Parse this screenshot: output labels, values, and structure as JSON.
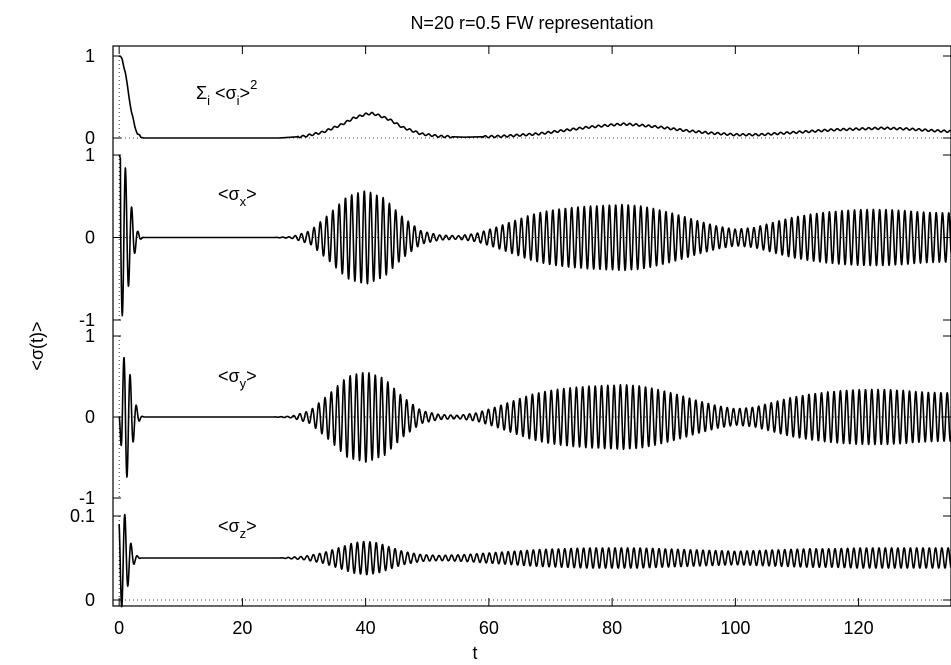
{
  "chart_data": {
    "type": "line",
    "title": "N=20  r=0.5   FW representation",
    "xlabel": "t",
    "ylabel": "<σ(t)>",
    "xlim": [
      -1,
      135
    ],
    "x_ticks": [
      0,
      20,
      40,
      60,
      80,
      100,
      120
    ],
    "x_tick_labels": [
      "0",
      "20",
      "40",
      "60",
      "80",
      "100",
      "120"
    ],
    "grid": false,
    "reference_lines": "dotted horizontal baseline in each panel, dotted vertical line at t=0",
    "panels": [
      {
        "annotation": "Σ_i <σ_i>^2",
        "annotation_parts": {
          "sym": "Σ",
          "sub1": "i",
          "mid": " <σ",
          "sub2": "i",
          ">": ">",
          "sup": "2"
        },
        "ylim": [
          0,
          1
        ],
        "y_ticks": [
          0,
          1
        ],
        "y_tick_labels": [
          "0",
          "1"
        ],
        "series": [
          {
            "x": [
              0,
              0.5,
              1.0,
              1.5,
              2.0,
              2.5,
              3.0,
              3.5,
              4,
              10,
              20,
              26,
              30,
              33,
              36,
              38,
              40,
              41,
              42,
              44,
              46,
              49,
              52,
              56,
              62,
              68,
              72,
              76,
              80,
              82,
              84,
              88,
              92,
              96,
              100,
              104,
              108,
              112,
              116,
              120,
              124,
              128,
              132,
              135
            ],
            "values": [
              1.0,
              0.96,
              0.8,
              0.55,
              0.32,
              0.15,
              0.05,
              0.01,
              0.0,
              0.0,
              0.0,
              0.0,
              0.02,
              0.07,
              0.16,
              0.24,
              0.29,
              0.3,
              0.28,
              0.22,
              0.13,
              0.05,
              0.02,
              0.01,
              0.02,
              0.05,
              0.09,
              0.13,
              0.16,
              0.17,
              0.16,
              0.13,
              0.09,
              0.06,
              0.04,
              0.04,
              0.06,
              0.08,
              0.1,
              0.11,
              0.12,
              0.11,
              0.09,
              0.08
            ],
            "ripple": 0.012
          }
        ]
      },
      {
        "annotation": "<σ_x>",
        "annotation_parts": {
          "open": "<σ",
          "sub": "x",
          "close": ">"
        },
        "ylim": [
          -1,
          1
        ],
        "y_ticks": [
          -1,
          0,
          1
        ],
        "y_tick_labels": [
          "-1",
          "0",
          "1"
        ],
        "series": [
          {
            "x": [
              0,
              0.5,
              1.0,
              1.5,
              2.0,
              2.5,
              3.0,
              3.5,
              4,
              10,
              20,
              25,
              28,
              31,
              34,
              37,
              40,
              43,
              46,
              49,
              52,
              55,
              58,
              61,
              64,
              67,
              70,
              73,
              76,
              79,
              82,
              85,
              88,
              91,
              94,
              97,
              100,
              103,
              106,
              109,
              112,
              115,
              118,
              121,
              124,
              127,
              130,
              133,
              135
            ],
            "amplitude": [
              1.0,
              0.95,
              0.85,
              0.6,
              0.38,
              0.2,
              0.08,
              0.02,
              0.0,
              0.0,
              0.0,
              0.0,
              0.01,
              0.08,
              0.28,
              0.5,
              0.57,
              0.48,
              0.25,
              0.08,
              0.03,
              0.02,
              0.05,
              0.12,
              0.2,
              0.28,
              0.33,
              0.36,
              0.38,
              0.39,
              0.4,
              0.38,
              0.33,
              0.27,
              0.2,
              0.14,
              0.1,
              0.12,
              0.18,
              0.24,
              0.28,
              0.31,
              0.33,
              0.34,
              0.34,
              0.33,
              0.31,
              0.3,
              0.3
            ],
            "period": 1.02,
            "phase": 0.0
          }
        ]
      },
      {
        "annotation": "<σ_y>",
        "annotation_parts": {
          "open": "<σ",
          "sub": "y",
          "close": ">"
        },
        "ylim": [
          -1,
          1
        ],
        "y_ticks": [
          -1,
          0,
          1
        ],
        "y_tick_labels": [
          "-1",
          "0",
          "1"
        ],
        "series": [
          {
            "x": [
              0,
              0.5,
              1.0,
              1.5,
              2.0,
              2.5,
              3.0,
              3.5,
              4,
              10,
              20,
              25,
              28,
              31,
              34,
              37,
              40,
              43,
              46,
              49,
              52,
              55,
              58,
              61,
              64,
              67,
              70,
              73,
              76,
              79,
              82,
              85,
              88,
              91,
              94,
              97,
              100,
              103,
              106,
              109,
              112,
              115,
              118,
              121,
              124,
              127,
              130,
              133,
              135
            ],
            "amplitude": [
              0.0,
              0.6,
              0.85,
              0.65,
              0.42,
              0.22,
              0.09,
              0.02,
              0.0,
              0.0,
              0.0,
              0.0,
              0.01,
              0.08,
              0.28,
              0.5,
              0.56,
              0.48,
              0.25,
              0.08,
              0.03,
              0.02,
              0.05,
              0.12,
              0.2,
              0.28,
              0.33,
              0.36,
              0.38,
              0.39,
              0.4,
              0.38,
              0.33,
              0.27,
              0.2,
              0.14,
              0.1,
              0.12,
              0.18,
              0.24,
              0.28,
              0.31,
              0.33,
              0.34,
              0.34,
              0.33,
              0.31,
              0.3,
              0.3
            ],
            "period": 1.02,
            "phase": 0.25
          }
        ]
      },
      {
        "annotation": "<σ_z>",
        "annotation_parts": {
          "open": "<σ",
          "sub": "z",
          "close": ">"
        },
        "ylim": [
          0,
          0.1
        ],
        "y_ticks": [
          0,
          0.1
        ],
        "y_tick_labels": [
          "0",
          "0.1"
        ],
        "series": [
          {
            "x": [
              0,
              0.5,
              1.0,
              1.5,
              2.0,
              2.5,
              3.0,
              3.5,
              4,
              10,
              20,
              26,
              30,
              33,
              36,
              38,
              40,
              42,
              44,
              46,
              49,
              52,
              56,
              60,
              64,
              68,
              72,
              76,
              80,
              84,
              88,
              92,
              96,
              100,
              104,
              108,
              112,
              116,
              120,
              124,
              128,
              132,
              135
            ],
            "amplitude": [
              0.05,
              0.06,
              0.05,
              0.03,
              0.015,
              0.006,
              0.002,
              0.0,
              0.0,
              0.0,
              0.0,
              0.0,
              0.002,
              0.006,
              0.013,
              0.018,
              0.02,
              0.018,
              0.013,
              0.008,
              0.004,
              0.003,
              0.004,
              0.006,
              0.008,
              0.01,
              0.011,
              0.012,
              0.012,
              0.012,
              0.011,
              0.01,
              0.009,
              0.008,
              0.009,
              0.01,
              0.011,
              0.011,
              0.012,
              0.012,
              0.012,
              0.012,
              0.012
            ],
            "offset": 0.05,
            "period": 1.02,
            "phase": 0.1
          }
        ]
      }
    ]
  }
}
